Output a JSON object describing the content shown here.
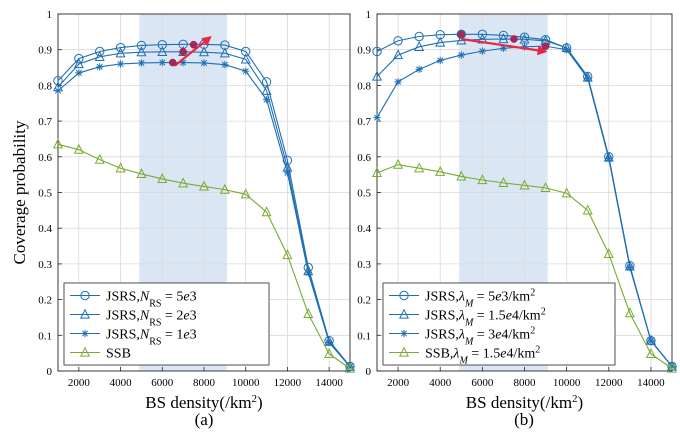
{
  "figure": {
    "panel_labels": [
      "(a)",
      "(b)"
    ]
  },
  "colors": {
    "jsrs": "#1f6fb4",
    "ssb": "#77ac30",
    "band": "#dbe6f4",
    "arrow": "#e8283f",
    "marker_fill": "#a0285c"
  },
  "chart_data": [
    {
      "type": "line",
      "xlabel_main": "BS density(/km",
      "xlabel_sup": "2",
      "xlabel_tail": ")",
      "ylabel": "Coverage probability",
      "xlim": [
        1000,
        15000
      ],
      "ylim": [
        0,
        1
      ],
      "xticks": [
        2000,
        4000,
        6000,
        8000,
        10000,
        12000,
        14000
      ],
      "yticks": [
        0,
        0.1,
        0.2,
        0.3,
        0.4,
        0.5,
        0.6,
        0.7,
        0.8,
        0.9,
        1
      ],
      "grid": true,
      "highlight_band": [
        4900,
        9100
      ],
      "legend_position": "bottom-left",
      "x": [
        1000,
        2000,
        3000,
        4000,
        5000,
        6000,
        7000,
        8000,
        9000,
        10000,
        11000,
        12000,
        13000,
        14000,
        15000
      ],
      "series": [
        {
          "name": "JSRS,N_RS = 5e3",
          "legend": {
            "main": "JSRS,",
            "var": "N",
            "sub": "RS",
            "rest": " = 5",
            "italic_tail": "e",
            "tail": "3"
          },
          "marker": "circle",
          "color": "#1f6fb4",
          "values": [
            0.813,
            0.875,
            0.895,
            0.906,
            0.912,
            0.914,
            0.915,
            0.915,
            0.913,
            0.895,
            0.81,
            0.59,
            0.29,
            0.085,
            0.013
          ]
        },
        {
          "name": "JSRS,N_RS = 2e3",
          "legend": {
            "main": "JSRS,",
            "var": "N",
            "sub": "RS",
            "rest": " = 2",
            "italic_tail": "e",
            "tail": "3"
          },
          "marker": "triangle",
          "color": "#1f6fb4",
          "values": [
            0.795,
            0.86,
            0.88,
            0.89,
            0.893,
            0.894,
            0.894,
            0.893,
            0.89,
            0.873,
            0.785,
            0.57,
            0.28,
            0.082,
            0.012
          ]
        },
        {
          "name": "JSRS,N_RS = 1e3",
          "legend": {
            "main": "JSRS,",
            "var": "N",
            "sub": "RS",
            "rest": " = 1",
            "italic_tail": "e",
            "tail": "3"
          },
          "marker": "star",
          "color": "#1f6fb4",
          "values": [
            0.785,
            0.835,
            0.852,
            0.86,
            0.863,
            0.864,
            0.864,
            0.863,
            0.858,
            0.84,
            0.76,
            0.555,
            0.275,
            0.08,
            0.012
          ]
        },
        {
          "name": "SSB",
          "legend": {
            "main": "SSB"
          },
          "marker": "triangle",
          "color": "#77ac30",
          "values": [
            0.635,
            0.62,
            0.592,
            0.568,
            0.552,
            0.538,
            0.526,
            0.517,
            0.508,
            0.495,
            0.445,
            0.325,
            0.16,
            0.048,
            0.007
          ]
        }
      ],
      "arrow": {
        "from": [
          6600,
          0.855
        ],
        "to": [
          8300,
          0.935
        ],
        "points": [
          [
            6500,
            0.864
          ],
          [
            7000,
            0.894
          ],
          [
            7500,
            0.914
          ]
        ]
      }
    },
    {
      "type": "line",
      "xlabel_main": "BS density(/km",
      "xlabel_sup": "2",
      "xlabel_tail": ")",
      "ylabel": "",
      "xlim": [
        1000,
        15000
      ],
      "ylim": [
        0,
        1
      ],
      "xticks": [
        2000,
        4000,
        6000,
        8000,
        10000,
        12000,
        14000
      ],
      "yticks": [
        0,
        0.1,
        0.2,
        0.3,
        0.4,
        0.5,
        0.6,
        0.7,
        0.8,
        0.9,
        1
      ],
      "grid": true,
      "highlight_band": [
        4900,
        9100
      ],
      "legend_position": "bottom-left",
      "x": [
        1000,
        2000,
        3000,
        4000,
        5000,
        6000,
        7000,
        8000,
        9000,
        10000,
        11000,
        12000,
        13000,
        14000,
        15000
      ],
      "series": [
        {
          "name": "JSRS,λM = 5e3/km2",
          "legend": {
            "main": "JSRS,",
            "var": "λ",
            "sub": "M",
            "rest": " = 5",
            "italic_tail": "e",
            "tail": "3/km",
            "sup": "2"
          },
          "marker": "circle",
          "color": "#1f6fb4",
          "values": [
            0.895,
            0.925,
            0.937,
            0.942,
            0.943,
            0.943,
            0.94,
            0.935,
            0.928,
            0.905,
            0.825,
            0.6,
            0.295,
            0.085,
            0.013
          ]
        },
        {
          "name": "JSRS,λM = 1.5e4/km2",
          "legend": {
            "main": "JSRS,",
            "var": "λ",
            "sub": "M",
            "rest": " = 1.5",
            "italic_tail": "e",
            "tail": "4/km",
            "sup": "2"
          },
          "marker": "triangle",
          "color": "#1f6fb4",
          "values": [
            0.825,
            0.885,
            0.908,
            0.92,
            0.926,
            0.929,
            0.93,
            0.929,
            0.925,
            0.905,
            0.822,
            0.598,
            0.293,
            0.085,
            0.013
          ]
        },
        {
          "name": "JSRS,λM = 3e4/km2",
          "legend": {
            "main": "JSRS,",
            "var": "λ",
            "sub": "M",
            "rest": " = 3",
            "italic_tail": "e",
            "tail": "4/km",
            "sup": "2"
          },
          "marker": "star",
          "color": "#1f6fb4",
          "values": [
            0.71,
            0.81,
            0.845,
            0.87,
            0.885,
            0.896,
            0.904,
            0.908,
            0.91,
            0.9,
            0.82,
            0.595,
            0.29,
            0.084,
            0.013
          ]
        },
        {
          "name": "SSB,λM = 1.5e4/km2",
          "legend": {
            "main": "SSB,",
            "var": "λ",
            "sub": "M",
            "rest": " = 1.5",
            "italic_tail": "e",
            "tail": "4/km",
            "sup": "2"
          },
          "marker": "triangle",
          "color": "#77ac30",
          "values": [
            0.555,
            0.578,
            0.568,
            0.558,
            0.545,
            0.535,
            0.527,
            0.52,
            0.513,
            0.498,
            0.45,
            0.328,
            0.162,
            0.048,
            0.007
          ]
        }
      ],
      "arrow": {
        "from": [
          5000,
          0.93
        ],
        "to": [
          9000,
          0.895
        ],
        "points": [
          [
            5000,
            0.943
          ],
          [
            7500,
            0.93
          ],
          [
            9000,
            0.91
          ]
        ]
      }
    }
  ]
}
